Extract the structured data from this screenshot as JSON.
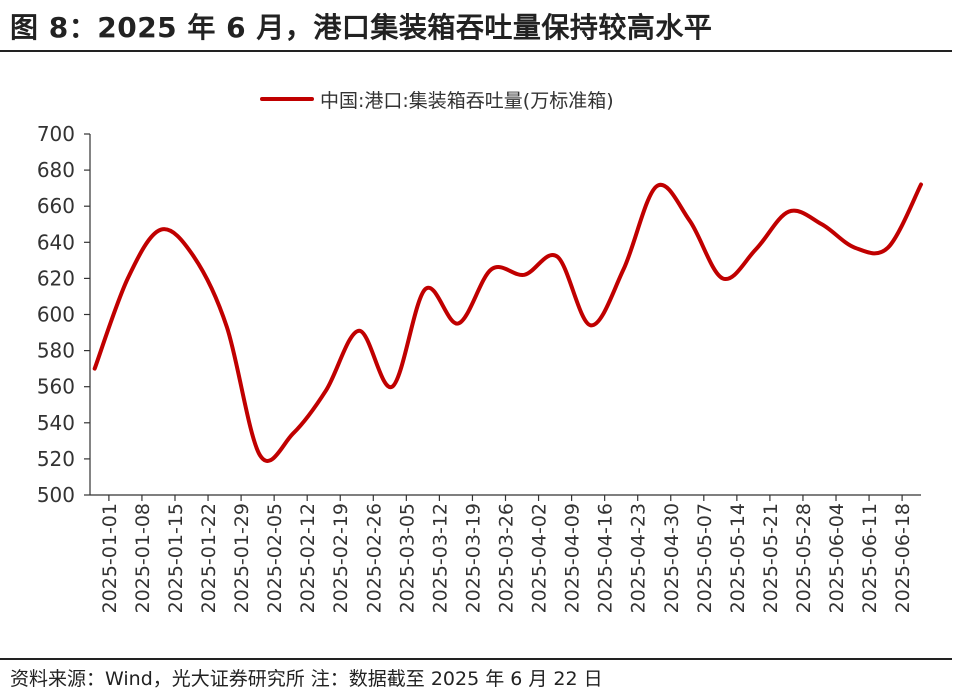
{
  "header": {
    "title": "图 8：2025 年 6 月，港口集装箱吞吐量保持较高水平"
  },
  "footer": {
    "source": "资料来源：Wind，光大证券研究所    注：数据截至 2025 年 6 月 22 日"
  },
  "colors": {
    "series": "#c00000",
    "axis": "#333333",
    "text": "#222222"
  },
  "chart_data": {
    "type": "line",
    "title": "",
    "xlabel": "",
    "ylabel": "",
    "ylim": [
      500,
      700
    ],
    "yticks": [
      500,
      520,
      540,
      560,
      580,
      600,
      620,
      640,
      660,
      680,
      700
    ],
    "grid": false,
    "legend_position": "top-center",
    "tick_labels": [
      "2025-01-01",
      "2025-01-08",
      "2025-01-15",
      "2025-01-22",
      "2025-01-29",
      "2025-02-05",
      "2025-02-12",
      "2025-02-19",
      "2025-02-26",
      "2025-03-05",
      "2025-03-12",
      "2025-03-19",
      "2025-03-26",
      "2025-04-02",
      "2025-04-09",
      "2025-04-16",
      "2025-04-23",
      "2025-04-30",
      "2025-05-07",
      "2025-05-14",
      "2025-05-21",
      "2025-05-28",
      "2025-06-04",
      "2025-06-11",
      "2025-06-18"
    ],
    "series": [
      {
        "name": "中国:港口:集装箱吞吐量(万标准箱)",
        "x": [
          "2024-12-29",
          "2025-01-05",
          "2025-01-12",
          "2025-01-19",
          "2025-01-26",
          "2025-02-02",
          "2025-02-09",
          "2025-02-16",
          "2025-02-23",
          "2025-03-02",
          "2025-03-09",
          "2025-03-16",
          "2025-03-23",
          "2025-03-30",
          "2025-04-06",
          "2025-04-13",
          "2025-04-20",
          "2025-04-27",
          "2025-05-04",
          "2025-05-11",
          "2025-05-18",
          "2025-05-25",
          "2025-06-01",
          "2025-06-08",
          "2025-06-15",
          "2025-06-22"
        ],
        "values": [
          570,
          620,
          647,
          632,
          593,
          522,
          534,
          558,
          591,
          560,
          614,
          595,
          625,
          622,
          632,
          594,
          625,
          671,
          652,
          620,
          636,
          657,
          650,
          637,
          637,
          672
        ]
      }
    ]
  }
}
